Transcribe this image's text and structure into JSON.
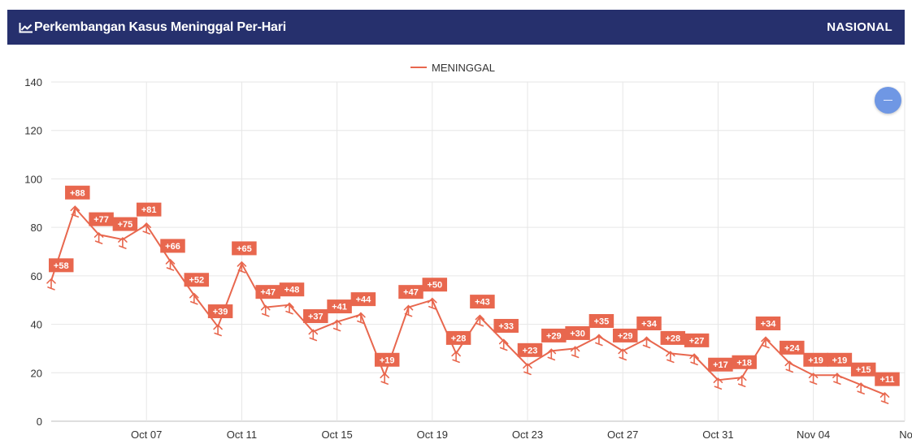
{
  "header": {
    "title": "Perkembangan Kasus Meninggal Per-Hari",
    "scope": "NASIONAL",
    "icon": "line-chart-icon"
  },
  "colors": {
    "header_bg": "#26306d",
    "series": "#e8674e",
    "label_bg": "#e8674e",
    "zoom_button": "#6f97e4"
  },
  "zoom_button": {
    "icon": "minus-icon"
  },
  "chart_data": {
    "type": "line",
    "legend": [
      "MENINGGAL"
    ],
    "legend_position": "top-center",
    "grid": true,
    "ylim": [
      0,
      140
    ],
    "yticks": [
      0,
      20,
      40,
      60,
      80,
      100,
      120,
      140
    ],
    "xtick_labels": [
      "Oct 07",
      "Oct 11",
      "Oct 15",
      "Oct 19",
      "Oct 23",
      "Oct 27",
      "Oct 31",
      "Nov 04",
      "Nov"
    ],
    "x": [
      "Oct 03",
      "Oct 04",
      "Oct 05",
      "Oct 06",
      "Oct 07",
      "Oct 08",
      "Oct 09",
      "Oct 10",
      "Oct 11",
      "Oct 12",
      "Oct 13",
      "Oct 14",
      "Oct 15",
      "Oct 16",
      "Oct 17",
      "Oct 18",
      "Oct 19",
      "Oct 20",
      "Oct 21",
      "Oct 22",
      "Oct 23",
      "Oct 24",
      "Oct 25",
      "Oct 26",
      "Oct 27",
      "Oct 28",
      "Oct 29",
      "Oct 30",
      "Oct 31",
      "Nov 01",
      "Nov 02",
      "Nov 03",
      "Nov 04",
      "Nov 05",
      "Nov 06",
      "Nov 07"
    ],
    "series": [
      {
        "name": "MENINGGAL",
        "values": [
          58,
          88,
          77,
          75,
          81,
          66,
          52,
          39,
          65,
          47,
          48,
          37,
          41,
          44,
          19,
          47,
          50,
          28,
          43,
          33,
          23,
          29,
          30,
          35,
          29,
          34,
          28,
          27,
          17,
          18,
          34,
          24,
          19,
          19,
          15,
          11
        ],
        "labels": [
          "+58",
          "+88",
          "+77",
          "+75",
          "+81",
          "+66",
          "+52",
          "+39",
          "+65",
          "+47",
          "+48",
          "+37",
          "+41",
          "+44",
          "+19",
          "+47",
          "+50",
          "+28",
          "+43",
          "+33",
          "+23",
          "+29",
          "+30",
          "+35",
          "+29",
          "+34",
          "+28",
          "+27",
          "+17",
          "+18",
          "+34",
          "+24",
          "+19",
          "+19",
          "+15",
          "+11"
        ]
      }
    ]
  }
}
